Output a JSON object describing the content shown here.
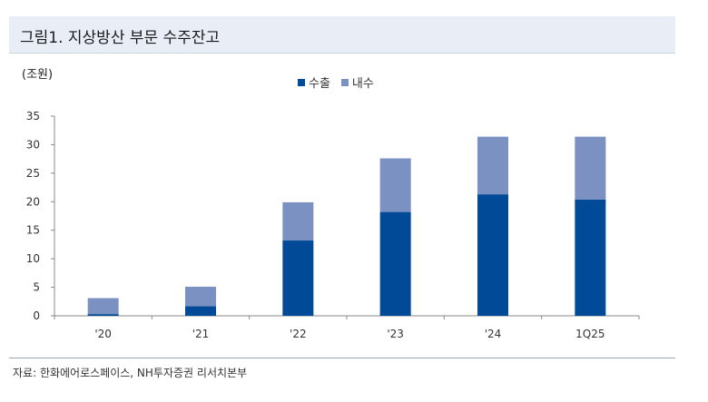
{
  "header": {
    "title": "그림1. 지상방산 부문 수주잔고"
  },
  "unit_label": "(조원)",
  "source": "자료: 한화에어로스페이스, NH투자증권 리서치본부",
  "colors": {
    "export": "#004a98",
    "domestic": "#7b91c2",
    "axis": "#888888",
    "header_bg": "#e9eef6"
  },
  "chart_data": {
    "type": "bar",
    "stacked": true,
    "categories": [
      "'20",
      "'21",
      "'22",
      "'23",
      "'24",
      "1Q25"
    ],
    "series": [
      {
        "name": "수출",
        "values": [
          0.3,
          1.7,
          13.2,
          18.2,
          21.3,
          20.4
        ]
      },
      {
        "name": "내수",
        "values": [
          2.8,
          3.4,
          6.7,
          9.4,
          10.1,
          11.0
        ]
      }
    ],
    "ylim": [
      0,
      35
    ],
    "yticks": [
      0,
      5,
      10,
      15,
      20,
      25,
      30,
      35
    ],
    "ylabel": "(조원)",
    "legend_position": "top-center",
    "grid": false
  }
}
